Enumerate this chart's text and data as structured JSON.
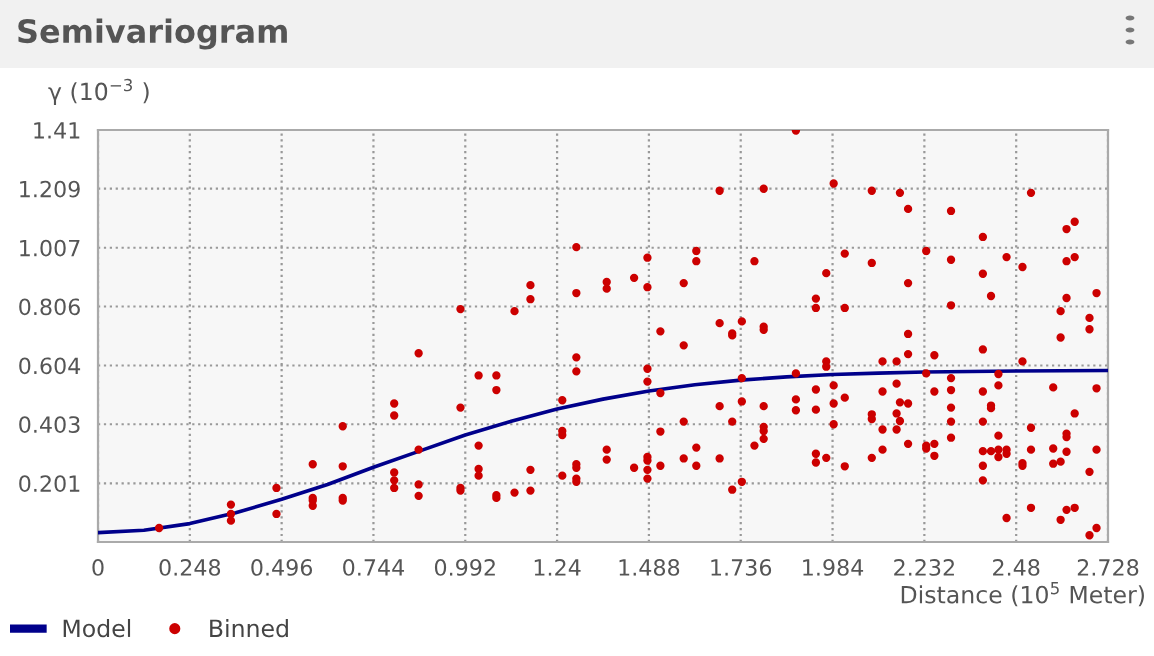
{
  "chart_data": {
    "type": "scatter",
    "title": "Semivariogram",
    "xlabel": "Distance (10$^{5}$ Meter)",
    "ylabel": "γ (10$^{−3}$ )",
    "xlim": [
      0,
      2.728
    ],
    "xticks": [
      0,
      0.248,
      0.496,
      0.744,
      0.992,
      1.24,
      1.488,
      1.736,
      1.984,
      2.232,
      2.48,
      2.728
    ],
    "ylim": [
      0,
      1.41
    ],
    "yticks": [
      {
        "value": 0,
        "label": null
      },
      0.201,
      0.403,
      0.604,
      0.806,
      1.007,
      1.209,
      1.41
    ],
    "grid": true,
    "legend": "bottom left",
    "series": [
      {
        "name": "Model",
        "type": "line",
        "color": "#00008b",
        "marker": "none",
        "line_style": "solid",
        "x": [
          0,
          0.124,
          0.248,
          0.372,
          0.496,
          0.62,
          0.744,
          0.868,
          0.992,
          1.116,
          1.24,
          1.364,
          1.488,
          1.612,
          1.736,
          1.86,
          1.984,
          2.108,
          2.232,
          2.48,
          2.728
        ],
        "values": [
          0.032,
          0.04,
          0.063,
          0.1,
          0.146,
          0.197,
          0.256,
          0.311,
          0.366,
          0.413,
          0.455,
          0.489,
          0.517,
          0.538,
          0.554,
          0.565,
          0.573,
          0.578,
          0.582,
          0.585,
          0.587
        ]
      },
      {
        "name": "Binned",
        "color": "#cc0000",
        "marker": "circle",
        "x": [
          0.165,
          0.359,
          0.359,
          0.359,
          0.482,
          0.482,
          0.58,
          0.58,
          0.58,
          0.58,
          0.661,
          0.661,
          0.661,
          0.661,
          0.8,
          0.8,
          0.8,
          0.8,
          0.8,
          0.866,
          0.866,
          0.866,
          0.866,
          0.979,
          0.979,
          0.979,
          0.979,
          1.028,
          1.028,
          1.028,
          1.028,
          1.076,
          1.076,
          1.076,
          1.076,
          1.125,
          1.125,
          1.168,
          1.168,
          1.168,
          1.168,
          1.254,
          1.254,
          1.254,
          1.254,
          1.292,
          1.292,
          1.292,
          1.292,
          1.292,
          1.292,
          1.292,
          1.292,
          1.374,
          1.374,
          1.374,
          1.374,
          1.448,
          1.448,
          1.484,
          1.484,
          1.484,
          1.484,
          1.484,
          1.484,
          1.484,
          1.484,
          1.519,
          1.519,
          1.519,
          1.519,
          1.582,
          1.582,
          1.582,
          1.582,
          1.616,
          1.616,
          1.616,
          1.616,
          1.679,
          1.679,
          1.679,
          1.679,
          1.713,
          1.713,
          1.713,
          1.713,
          1.739,
          1.739,
          1.739,
          1.739,
          1.773,
          1.773,
          1.798,
          1.798,
          1.798,
          1.798,
          1.798,
          1.798,
          1.798,
          1.885,
          1.885,
          1.885,
          1.885,
          1.939,
          1.939,
          1.939,
          1.939,
          1.939,
          1.939,
          1.967,
          1.967,
          1.967,
          1.967,
          1.987,
          1.987,
          1.987,
          1.987,
          2.017,
          2.017,
          2.017,
          2.017,
          2.09,
          2.09,
          2.09,
          2.09,
          2.09,
          2.119,
          2.119,
          2.119,
          2.119,
          2.157,
          2.157,
          2.157,
          2.157,
          2.166,
          2.166,
          2.166,
          2.188,
          2.188,
          2.188,
          2.188,
          2.188,
          2.188,
          2.237,
          2.237,
          2.237,
          2.237,
          2.259,
          2.259,
          2.259,
          2.259,
          2.304,
          2.304,
          2.304,
          2.304,
          2.304,
          2.304,
          2.304,
          2.304,
          2.39,
          2.39,
          2.39,
          2.39,
          2.39,
          2.39,
          2.39,
          2.39,
          2.412,
          2.412,
          2.412,
          2.412,
          2.432,
          2.432,
          2.432,
          2.432,
          2.432,
          2.454,
          2.454,
          2.454,
          2.454,
          2.497,
          2.497,
          2.497,
          2.497,
          2.52,
          2.52,
          2.52,
          2.52,
          2.58,
          2.58,
          2.58,
          2.6,
          2.6,
          2.6,
          2.6,
          2.616,
          2.616,
          2.616,
          2.616,
          2.616,
          2.616,
          2.616,
          2.638,
          2.638,
          2.638,
          2.638,
          2.678,
          2.678,
          2.678,
          2.678,
          2.697,
          2.697,
          2.697,
          2.697
        ],
        "values": [
          0.048,
          0.128,
          0.096,
          0.073,
          0.185,
          0.096,
          0.266,
          0.151,
          0.142,
          0.124,
          0.396,
          0.259,
          0.151,
          0.142,
          0.474,
          0.433,
          0.238,
          0.211,
          0.185,
          0.646,
          0.316,
          0.197,
          0.158,
          0.797,
          0.46,
          0.185,
          0.176,
          0.57,
          0.33,
          0.25,
          0.227,
          0.57,
          0.52,
          0.16,
          0.151,
          0.79,
          0.169,
          0.879,
          0.831,
          0.247,
          0.176,
          0.485,
          0.38,
          0.366,
          0.227,
          1.009,
          0.852,
          0.632,
          0.584,
          0.266,
          0.254,
          0.217,
          0.206,
          0.89,
          0.867,
          0.316,
          0.282,
          0.904,
          0.254,
          0.973,
          0.872,
          0.593,
          0.549,
          0.291,
          0.279,
          0.247,
          0.217,
          0.721,
          0.51,
          0.378,
          0.261,
          0.886,
          0.673,
          0.412,
          0.286,
          0.996,
          0.961,
          0.323,
          0.261,
          1.202,
          0.749,
          0.465,
          0.286,
          0.714,
          0.707,
          0.412,
          0.179,
          0.755,
          0.561,
          0.481,
          0.206,
          0.961,
          0.33,
          1.209,
          0.737,
          0.726,
          0.465,
          0.394,
          0.38,
          0.353,
          1.408,
          0.577,
          0.488,
          0.451,
          0.833,
          0.801,
          0.522,
          0.453,
          0.302,
          0.272,
          0.92,
          0.618,
          0.6,
          0.288,
          1.227,
          0.536,
          0.474,
          0.403,
          0.987,
          0.801,
          0.494,
          0.259,
          1.202,
          0.955,
          0.437,
          0.421,
          0.288,
          0.618,
          0.515,
          0.385,
          0.316,
          0.618,
          0.542,
          0.44,
          0.385,
          1.195,
          0.478,
          0.414,
          1.14,
          0.886,
          0.712,
          0.643,
          0.474,
          0.336,
          0.996,
          0.577,
          0.33,
          0.32,
          0.639,
          0.515,
          0.336,
          0.295,
          1.133,
          0.966,
          0.81,
          0.561,
          0.52,
          0.46,
          0.412,
          0.357,
          1.044,
          0.918,
          0.659,
          0.515,
          0.412,
          0.311,
          0.261,
          0.211,
          0.842,
          0.467,
          0.458,
          0.311,
          0.575,
          0.536,
          0.364,
          0.316,
          0.291,
          0.975,
          0.316,
          0.302,
          0.082,
          0.618,
          0.27,
          0.261,
          0.941,
          1.195,
          0.391,
          0.316,
          0.117,
          0.529,
          0.32,
          0.268,
          0.79,
          0.7,
          0.275,
          0.076,
          1.071,
          0.961,
          0.835,
          0.371,
          0.359,
          0.309,
          0.11,
          1.096,
          0.975,
          0.44,
          0.117,
          0.767,
          0.728,
          0.24,
          0.023,
          0.852,
          0.526,
          0.316,
          0.048
        ]
      }
    ]
  }
}
